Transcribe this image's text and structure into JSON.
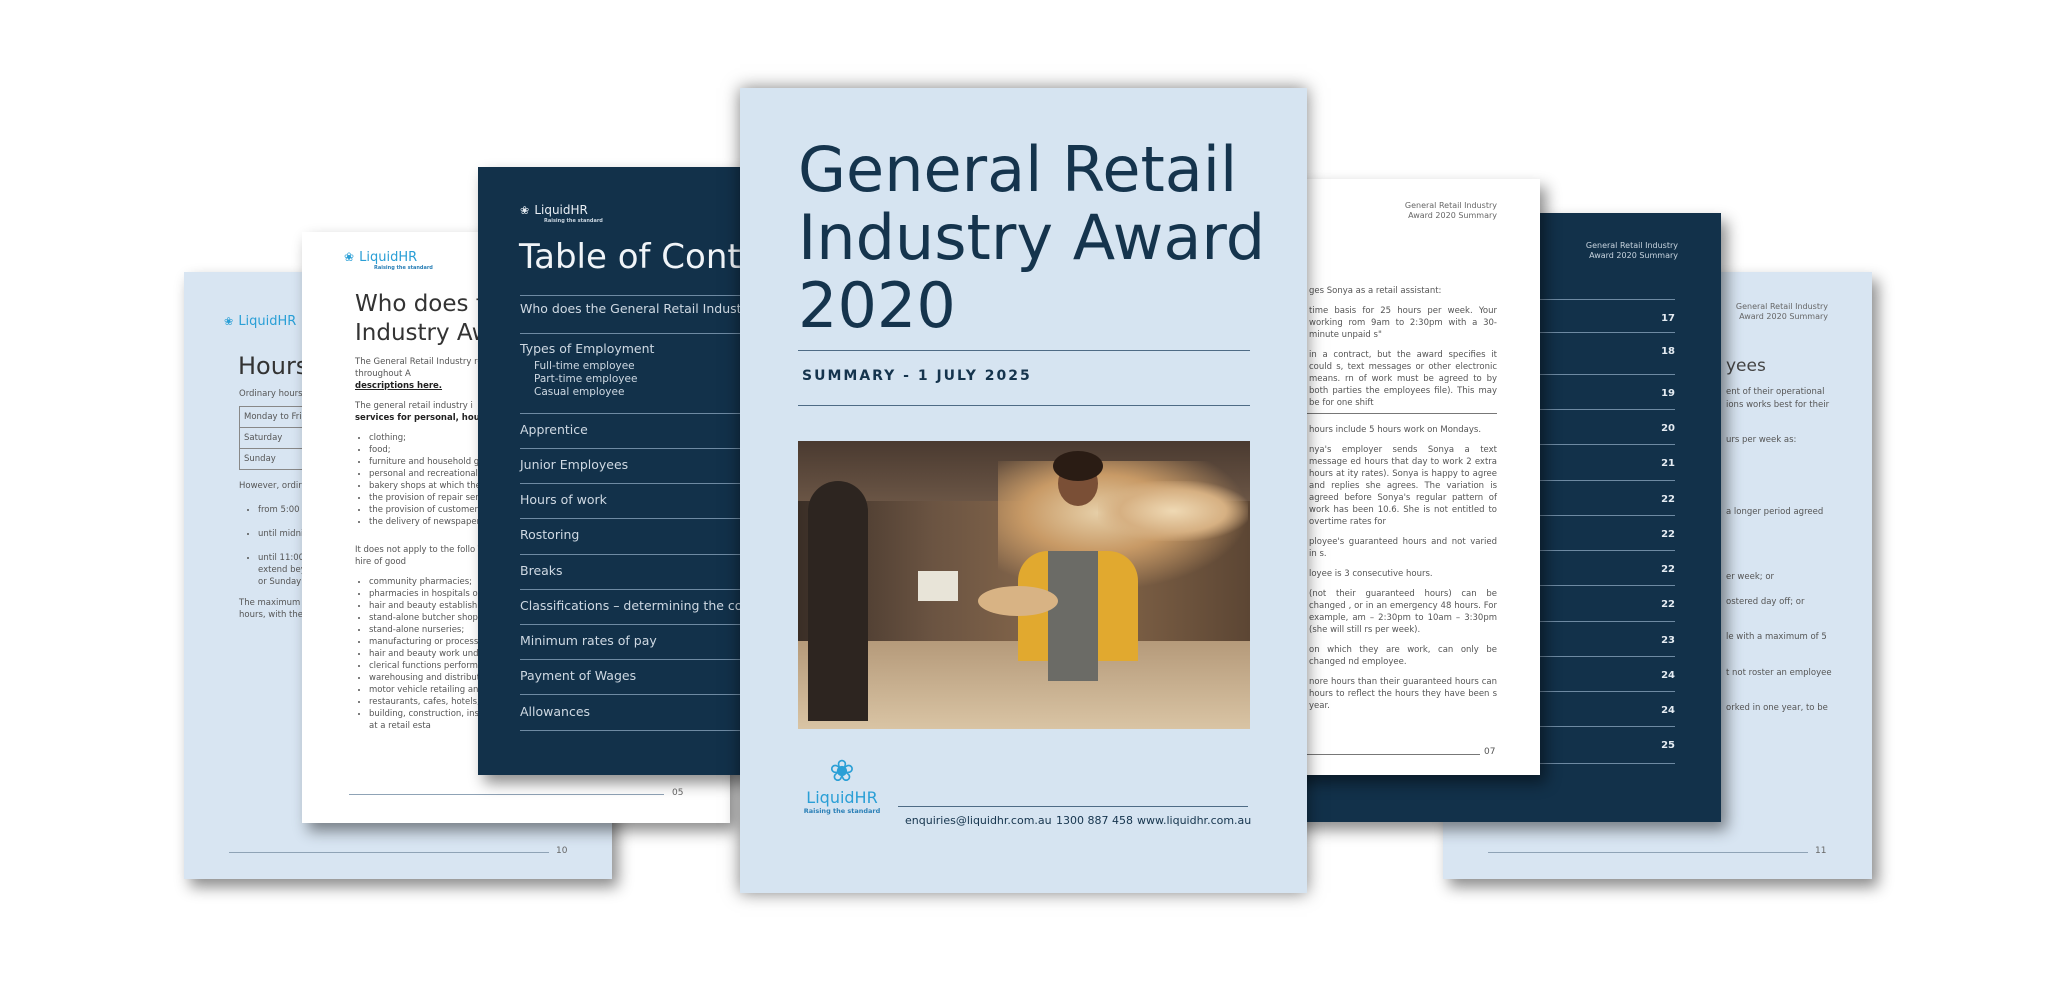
{
  "brand": {
    "name": "LiquidHR",
    "tagline": "Raising the standard",
    "accent": "#2a9fd6",
    "navy": "#12314a",
    "cover_bg": "#d6e4f1"
  },
  "page_hours": {
    "title": "Hours",
    "intro": "Ordinary hours",
    "table": [
      "Monday to Fric",
      "Saturday",
      "Sunday"
    ],
    "however": "However, ordir",
    "bullets": [
      "from 5:00 a",
      "until midnig",
      "until 11:00 p extend bey or Sunday"
    ],
    "max_text": "The maximum hours, with the",
    "page_number": "10"
  },
  "page_who": {
    "title_line1": "Who does the General Retail",
    "title_line2": "Industry Award",
    "para1": "The General Retail Industry retail industry throughout A",
    "para1_link": "descriptions here.",
    "para2": "The general retail industry i",
    "para2_bold": "services for personal, house",
    "list1": [
      "clothing;",
      "food;",
      "furniture and household goo",
      "personal and recreational g",
      "bakery shops at which the p premises; and",
      "the provision of repair servic",
      "the provision of customer in",
      "the delivery of newspapers"
    ],
    "para3": "It does not apply to the follo The retail sale or hire of good",
    "list2": [
      "community pharmacies;",
      "pharmacies in hospitals or o",
      "hair and beauty establishme",
      "stand-alone butcher shops;",
      "stand-alone nurseries;",
      "manufacturing or process establishments;",
      "hair and beauty work unde industries;",
      "clerical functions performed",
      "warehousing and distributio",
      "motor vehicle retailing and",
      "restaurants, cafes, hotels, m",
      "building, construction, insta perform work at a retail esta"
    ],
    "page_number": "05"
  },
  "page_toc": {
    "title": "Table of Conte",
    "items": [
      {
        "label": "Who does the General Retail Industry Award"
      },
      {
        "label": "Types of Employment",
        "sub": [
          "Full-time employee",
          "Part-time employee",
          "Casual employee"
        ]
      },
      {
        "label": "Apprentice"
      },
      {
        "label": "Junior Employees"
      },
      {
        "label": "Hours of work"
      },
      {
        "label": "Rostoring"
      },
      {
        "label": "Breaks"
      },
      {
        "label": "Classifications – determining the correct hou"
      },
      {
        "label": "Minimum rates of pay"
      },
      {
        "label": "Payment of Wages"
      },
      {
        "label": "Allowances"
      }
    ]
  },
  "cover": {
    "title_line1": "General Retail",
    "title_line2": "Industry Award",
    "title_line3": "2020",
    "subtitle": "SUMMARY - 1 JULY 2025",
    "photo_alt": "bakery-counter-photo",
    "email": "enquiries@liquidhr.com.au",
    "phone": "1300 887 458",
    "website": "www.liquidhr.com.au"
  },
  "page_example": {
    "header_line1": "General Retail Industry",
    "header_line2": "Award 2020 Summary",
    "paragraphs": [
      "ges Sonya as a retail assistant:",
      "time basis for 25 hours per week. Your working rom 9am to 2:30pm with a 30-minute unpaid s\"",
      "in a contract, but the award specifies it could s, text messages or other electronic means. rn of work must be agreed to by both parties the employees file). This may be for one shift"
    ],
    "paragraphs2": [
      "hours include 5 hours work on Mondays.",
      "nya's employer sends Sonya a text message ed hours that day to work 2 extra hours at ity rates). Sonya is happy to agree and replies she agrees. The variation is agreed before Sonya's regular pattern of work has been 10.6. She is not entitled to overtime rates for",
      "ployee's guaranteed hours and not varied in s.",
      "loyee is 3 consecutive hours.",
      "(not their guaranteed hours) can be changed , or in an emergency 48 hours. For example, am – 2:30pm to 10am – 3:30pm (she will still rs per week).",
      "on which they are work, can only be changed nd employee.",
      "nore hours than their guaranteed hours can hours to reflect the hours they have been s year."
    ],
    "page_number": "07"
  },
  "page_toc2": {
    "header_line1": "General Retail Industry",
    "header_line2": "Award 2020 Summary",
    "page_numbers": [
      "17",
      "18",
      "19",
      "20",
      "21",
      "22",
      "22",
      "22",
      "22",
      "23",
      "24",
      "24",
      "25"
    ]
  },
  "page_rostering": {
    "header_line1": "General Retail Industry",
    "header_line2": "Award 2020 Summary",
    "title": "yees",
    "lines": [
      "ent of their operational",
      "ions works best for their",
      "urs per week as:",
      "a longer period agreed",
      "er week; or",
      "ostered day off; or",
      "le with a maximum of 5",
      "t not roster an employee",
      "orked in one year, to be"
    ],
    "page_number": "11"
  }
}
